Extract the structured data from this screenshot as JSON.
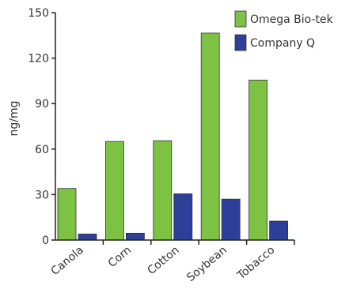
{
  "chart_data": {
    "type": "bar",
    "title": "",
    "xlabel": "",
    "ylabel": "ng/mg",
    "ylim": [
      0,
      150
    ],
    "yticks": [
      0,
      30,
      60,
      90,
      120,
      150
    ],
    "grid": false,
    "legend": "top-right",
    "categories": [
      "Canola",
      "Corn",
      "Cotton",
      "Soybean",
      "Tobacco"
    ],
    "series": [
      {
        "name": "Omega Bio-tek",
        "color": "#7dc243",
        "values": [
          34,
          65,
          65.5,
          136.5,
          105.5
        ]
      },
      {
        "name": "Company Q",
        "color": "#2e3f99",
        "values": [
          4,
          4.5,
          30.5,
          27,
          12.5
        ]
      }
    ]
  }
}
